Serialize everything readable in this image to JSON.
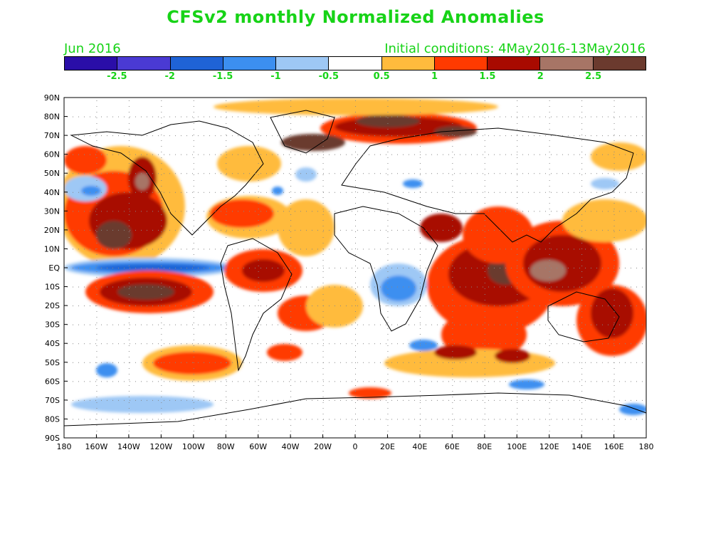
{
  "title": "CFSv2 monthly Normalized Anomalies",
  "month_label": "Jun 2016",
  "initial_conditions": "Initial conditions: 4May2016-13May2016",
  "colorbar": {
    "colors": [
      "#2a0ea8",
      "#4a3ad3",
      "#1f63d6",
      "#3c8ff0",
      "#9ec8f5",
      "#ffffff",
      "#ffbb3d",
      "#ff3a00",
      "#a80a00",
      "#a77566",
      "#6b3a2e"
    ],
    "tick_labels": [
      "-2.5",
      "-2",
      "-1.5",
      "-1",
      "-0.5",
      "0.5",
      "1",
      "1.5",
      "2",
      "2.5"
    ]
  },
  "axes": {
    "lat_labels": [
      "90N",
      "80N",
      "70N",
      "60N",
      "50N",
      "40N",
      "30N",
      "20N",
      "10N",
      "EQ",
      "10S",
      "20S",
      "30S",
      "40S",
      "50S",
      "60S",
      "70S",
      "80S",
      "90S"
    ],
    "lon_labels": [
      "180",
      "160W",
      "140W",
      "120W",
      "100W",
      "80W",
      "60W",
      "40W",
      "20W",
      "0",
      "20E",
      "40E",
      "60E",
      "80E",
      "100E",
      "120E",
      "140E",
      "160E",
      "180"
    ]
  }
}
